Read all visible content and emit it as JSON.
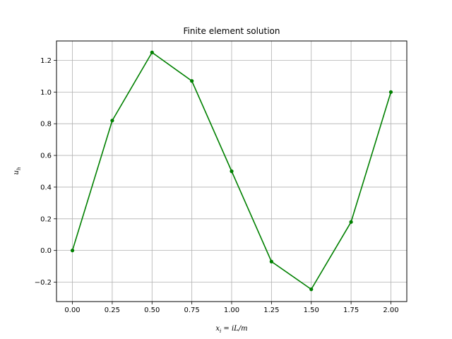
{
  "chart_data": {
    "type": "line",
    "title": "Finite element solution",
    "xlabel": "x_i = iL/m",
    "ylabel": "u_h",
    "x": [
      0.0,
      0.25,
      0.5,
      0.75,
      1.0,
      1.25,
      1.5,
      1.75,
      2.0
    ],
    "series": [
      {
        "values": [
          0.0,
          0.82,
          1.25,
          1.07,
          0.5,
          -0.07,
          -0.245,
          0.18,
          1.0
        ],
        "color": "#008000",
        "marker": "dot"
      }
    ],
    "xlim": [
      -0.1,
      2.1
    ],
    "ylim": [
      -0.3225,
      1.3225
    ],
    "xticks": [
      0.0,
      0.25,
      0.5,
      0.75,
      1.0,
      1.25,
      1.5,
      1.75,
      2.0
    ],
    "xtick_labels": [
      "0.00",
      "0.25",
      "0.50",
      "0.75",
      "1.00",
      "1.25",
      "1.50",
      "1.75",
      "2.00"
    ],
    "yticks": [
      -0.2,
      0.0,
      0.2,
      0.4,
      0.6,
      0.8,
      1.0,
      1.2
    ],
    "ytick_labels": [
      "−0.2",
      "0.0",
      "0.2",
      "0.4",
      "0.6",
      "0.8",
      "1.0",
      "1.2"
    ],
    "grid": true
  }
}
